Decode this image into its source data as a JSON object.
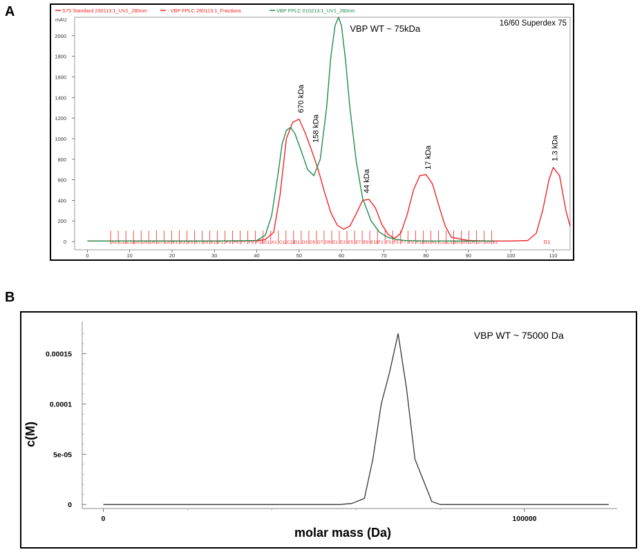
{
  "panels": [
    {
      "id": "A",
      "label": "A"
    },
    {
      "id": "B",
      "label": "B"
    }
  ],
  "chart_data": [
    {
      "type": "line",
      "panel": "A",
      "title": "",
      "corner_label": "16/60 Superdex 75",
      "unit_label": "mAU",
      "legend": [
        {
          "name": "S75 Standard 230113:1_UV1_280nm",
          "color": "#ee2222"
        },
        {
          "name": "- VBP FPLC 260113:1_Fractions",
          "color": "#ee2222"
        },
        {
          "name": "VBP FPLC 010213:1_UV1_280nm",
          "color": "#1f8a4c"
        }
      ],
      "xlim": [
        -3,
        114
      ],
      "ylim": [
        -80,
        2180
      ],
      "x_ticks": [
        0,
        10,
        20,
        30,
        40,
        50,
        60,
        70,
        80,
        90,
        100,
        110
      ],
      "y_ticks": [
        0,
        200,
        400,
        600,
        800,
        1000,
        1200,
        1400,
        1600,
        1800,
        2000
      ],
      "series": [
        {
          "color": "#ee2222",
          "x": [
            0,
            10,
            20,
            30,
            40,
            42,
            44,
            45.5,
            47,
            48.5,
            50,
            51.5,
            53,
            54.5,
            56,
            57.5,
            59,
            60.5,
            62,
            63.5,
            65,
            66.5,
            68,
            69.5,
            71,
            72.5,
            74,
            75.5,
            77,
            78.5,
            80,
            81.5,
            83,
            84.5,
            86,
            90,
            95,
            100,
            104,
            106,
            107.5,
            109,
            110,
            111.5,
            113,
            114
          ],
          "y": [
            5,
            5,
            5,
            5,
            8,
            20,
            90,
            450,
            1000,
            1160,
            1190,
            1050,
            880,
            700,
            480,
            280,
            160,
            120,
            150,
            270,
            400,
            410,
            330,
            170,
            70,
            30,
            80,
            260,
            500,
            640,
            650,
            560,
            350,
            150,
            40,
            10,
            5,
            5,
            10,
            80,
            300,
            600,
            720,
            640,
            300,
            150
          ]
        },
        {
          "color": "#1f8a4c",
          "x": [
            0,
            10,
            20,
            30,
            40,
            42,
            43.5,
            45,
            46,
            47,
            48,
            49,
            50.5,
            52,
            53.5,
            55,
            56.5,
            57.5,
            58.5,
            59.3,
            60,
            61,
            62,
            63.5,
            65,
            67,
            69,
            71,
            73,
            75,
            80,
            90,
            96
          ],
          "y": [
            5,
            5,
            5,
            5,
            10,
            60,
            250,
            650,
            950,
            1080,
            1110,
            1050,
            880,
            700,
            640,
            800,
            1300,
            1800,
            2100,
            2180,
            2100,
            1750,
            1300,
            780,
            420,
            200,
            90,
            40,
            20,
            10,
            5,
            5,
            5
          ]
        }
      ],
      "annotations": [
        {
          "text": "VBP WT ~ 75kDa",
          "x": 62,
          "y": 2040
        },
        {
          "text": "670 kDa",
          "x": 51,
          "y": 1250
        },
        {
          "text": "158 kDa",
          "x": 54.5,
          "y": 960
        },
        {
          "text": "44 kDa",
          "x": 66.5,
          "y": 470
        },
        {
          "text": "17 kDa",
          "x": 81,
          "y": 700
        },
        {
          "text": "1.3 kDa",
          "x": 111,
          "y": 780
        }
      ],
      "fraction_labels": {
        "start_x": 5.5,
        "end_x": 96,
        "step": 1.8,
        "visible_codes": [
          "A1",
          "C11",
          "C12",
          "D1",
          "D3",
          "D5",
          "D7",
          "D9",
          "E1",
          "E3",
          "E5",
          "E7",
          "E9",
          "E11",
          "F1",
          "F3",
          "F5",
          "F7",
          "F9",
          "F11",
          "G1"
        ],
        "last_label": {
          "text": "G1",
          "x": 110
        }
      }
    },
    {
      "type": "line",
      "panel": "B",
      "title": "",
      "xlabel": "molar mass (Da)",
      "ylabel": "c(M)",
      "annotation": {
        "text": "VBP WT ~ 75000 Da",
        "x": 88000,
        "y": 0.000165
      },
      "xlim": [
        -5000,
        122000
      ],
      "ylim": [
        -4e-06,
        0.000182
      ],
      "x_ticks": [
        {
          "value": 0,
          "label": "0"
        },
        {
          "value": 100000,
          "label": "100000"
        }
      ],
      "minor_x_ticks": [
        20000,
        40000,
        60000,
        80000
      ],
      "y_ticks": [
        {
          "value": 0,
          "label": "0"
        },
        {
          "value": 5e-05,
          "label": "5e-05"
        },
        {
          "value": 0.0001,
          "label": "0.0001"
        },
        {
          "value": 0.00015,
          "label": "0.00015"
        }
      ],
      "series": [
        {
          "color": "#333333",
          "x": [
            0,
            10000,
            20000,
            30000,
            40000,
            50000,
            56000,
            59000,
            62000,
            64000,
            66000,
            68000,
            70000,
            72000,
            74000,
            78000,
            80000,
            90000,
            100000,
            120000
          ],
          "y": [
            0,
            0,
            0,
            0,
            0,
            0,
            0,
            1e-06,
            6e-06,
            4.5e-05,
            0.0001,
            0.000132,
            0.00017,
            0.000115,
            4.5e-05,
            3e-06,
            0,
            0,
            0,
            0
          ]
        }
      ]
    }
  ]
}
